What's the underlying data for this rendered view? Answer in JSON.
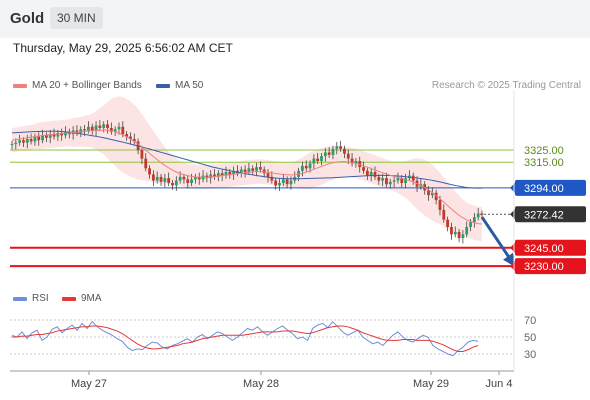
{
  "header": {
    "symbol": "Gold",
    "timeframe": "30 MIN",
    "datetime": "Thursday, May 29, 2025 6:56:02 AM CET"
  },
  "legend": {
    "ma20_label": "MA 20 + Bollinger Bands",
    "ma50_label": "MA 50",
    "copyright": "Research © 2025 Trading Central",
    "rsi_label": "RSI",
    "rsi_ma_label": "9MA"
  },
  "colors": {
    "ma20": "#f08080",
    "ma50": "#3b5ea8",
    "band_fill": "#fde3e3",
    "up": "#2a9d6a",
    "down": "#c0392b",
    "resistance": "#8cc63f",
    "pivot": "#1f58c4",
    "support": "#e5131b",
    "last": "#333333",
    "arrow": "#2c5aa0",
    "rsi": "#6f8fd8",
    "rsi_ma": "#e53935"
  },
  "chart_data": [
    {
      "type": "candlestick",
      "x_ticks": [
        "May 27",
        "May 28",
        "May 29",
        "Jun 4"
      ],
      "levels": [
        {
          "value": 3325.0,
          "label": "3325.00",
          "kind": "resistance"
        },
        {
          "value": 3315.0,
          "label": "3315.00",
          "kind": "resistance"
        },
        {
          "value": 3294.0,
          "label": "3294.00",
          "kind": "pivot"
        },
        {
          "value": 3272.42,
          "label": "3272.42",
          "kind": "last"
        },
        {
          "value": 3245.0,
          "label": "3245.00",
          "kind": "support"
        },
        {
          "value": 3230.0,
          "label": "3230.00",
          "kind": "support"
        }
      ],
      "close": [
        3330,
        3331,
        3333,
        3331,
        3334,
        3332,
        3336,
        3333,
        3337,
        3335,
        3338,
        3336,
        3339,
        3337,
        3340,
        3338,
        3341,
        3339,
        3342,
        3341,
        3344,
        3341,
        3345,
        3343,
        3346,
        3343,
        3340,
        3342,
        3344,
        3338,
        3336,
        3334,
        3332,
        3325,
        3318,
        3310,
        3305,
        3300,
        3303,
        3299,
        3302,
        3298,
        3296,
        3300,
        3303,
        3301,
        3298,
        3301,
        3303,
        3301,
        3304,
        3302,
        3305,
        3303,
        3306,
        3304,
        3307,
        3305,
        3308,
        3306,
        3309,
        3307,
        3310,
        3308,
        3311,
        3309,
        3306,
        3303,
        3300,
        3296,
        3298,
        3301,
        3297,
        3300,
        3303,
        3308,
        3312,
        3310,
        3314,
        3318,
        3316,
        3320,
        3323,
        3321,
        3326,
        3328,
        3326,
        3322,
        3318,
        3314,
        3316,
        3311,
        3308,
        3304,
        3307,
        3303,
        3300,
        3302,
        3297,
        3299,
        3300,
        3302,
        3298,
        3302,
        3304,
        3300,
        3295,
        3297,
        3292,
        3288,
        3290,
        3284,
        3276,
        3268,
        3262,
        3256,
        3258,
        3253,
        3256,
        3262,
        3266,
        3270,
        3273,
        3272
      ],
      "ma20": [
        3333,
        3333.5,
        3334,
        3334.5,
        3335,
        3335.5,
        3336,
        3336.5,
        3337,
        3337.3,
        3337.6,
        3337.9,
        3338.2,
        3338.5,
        3338.8,
        3339,
        3339.3,
        3339.6,
        3339.9,
        3340.2,
        3340.5,
        3340.8,
        3341,
        3341.2,
        3341.4,
        3341.2,
        3340.8,
        3340,
        3338.8,
        3337.4,
        3335.8,
        3334,
        3332,
        3329.8,
        3327.4,
        3324.8,
        3322.2,
        3319.6,
        3317,
        3314.6,
        3312.4,
        3310.4,
        3308.6,
        3307,
        3305.8,
        3304.8,
        3304,
        3303.4,
        3303,
        3302.8,
        3302.7,
        3302.8,
        3303,
        3303.3,
        3303.6,
        3304,
        3304.4,
        3304.8,
        3305.2,
        3305.6,
        3306,
        3306.4,
        3306.8,
        3307.1,
        3307.3,
        3307.3,
        3307.1,
        3306.8,
        3306.3,
        3305.8,
        3305.4,
        3305,
        3304.7,
        3304.6,
        3304.8,
        3305.3,
        3306,
        3306.9,
        3308,
        3309.2,
        3310.4,
        3311.6,
        3312.8,
        3313.8,
        3314.6,
        3315.2,
        3315.5,
        3315.5,
        3315.2,
        3314.7,
        3314,
        3313.1,
        3312,
        3310.9,
        3309.8,
        3308.7,
        3307.5,
        3306.4,
        3305.3,
        3304.3,
        3303.4,
        3302.6,
        3301.8,
        3301,
        3300,
        3298.8,
        3297.5,
        3296,
        3294.3,
        3292.4,
        3290.2,
        3287.8,
        3285.2,
        3282.4,
        3279.5,
        3276.7,
        3274,
        3271.6,
        3269.5,
        3267.8,
        3266.5,
        3265.5,
        3264.8,
        3264.4
      ],
      "bb_width": [
        10,
        10,
        10,
        10,
        10,
        10,
        10,
        11,
        11,
        11,
        11,
        11,
        11,
        11,
        11,
        11,
        12,
        12,
        12,
        13,
        13,
        14,
        16,
        18,
        20,
        23,
        26,
        28,
        30,
        31,
        31,
        31,
        30,
        29,
        27,
        25,
        23,
        21,
        19,
        17,
        15,
        13,
        12,
        11,
        10,
        10,
        10,
        10,
        10,
        10,
        10,
        10,
        10,
        10,
        10,
        10,
        10,
        10,
        10,
        10,
        10,
        10,
        10,
        10,
        10,
        10,
        10,
        10,
        10,
        10,
        10,
        10,
        10,
        10,
        11,
        12,
        13,
        14,
        15,
        15,
        15,
        15,
        15,
        14,
        14,
        13,
        13,
        12,
        12,
        12,
        12,
        12,
        12,
        12,
        12,
        12,
        12,
        12,
        12,
        12,
        12,
        13,
        14,
        15,
        17,
        19,
        21,
        22,
        23,
        23,
        23,
        22,
        21,
        20,
        19,
        18,
        17,
        16,
        15,
        14,
        14,
        14
      ],
      "ma50": [
        3339,
        3339.2,
        3339.4,
        3339.6,
        3339.8,
        3340,
        3340.1,
        3340.2,
        3340.3,
        3340.3,
        3340.3,
        3340.2,
        3340,
        3339.7,
        3339.3,
        3338.8,
        3338.3,
        3337.8,
        3337.2,
        3336.6,
        3336,
        3335.3,
        3334.6,
        3333.8,
        3333,
        3332.2,
        3331.4,
        3330.5,
        3329.6,
        3328.7,
        3327.8,
        3326.9,
        3326,
        3325,
        3324,
        3323,
        3322,
        3321,
        3320,
        3319,
        3318,
        3317,
        3316,
        3315,
        3314,
        3313,
        3312,
        3311,
        3310.3,
        3309.5,
        3308.8,
        3308,
        3307.3,
        3306.6,
        3306,
        3305.4,
        3304.8,
        3304.2,
        3303.7,
        3303.2,
        3302.7,
        3302.3,
        3302,
        3301.8,
        3301.6,
        3301.5,
        3301.5,
        3301.5,
        3301.6,
        3301.7,
        3301.8,
        3301.9,
        3302,
        3302.1,
        3302.2,
        3302.3,
        3302.5,
        3302.7,
        3302.9,
        3303.1,
        3303.3,
        3303.5,
        3303.7,
        3303.9,
        3304,
        3304.1,
        3304.2,
        3304.2,
        3304.1,
        3304,
        3303.8,
        3303.5,
        3303.2,
        3302.8,
        3302.4,
        3302,
        3301.5,
        3301,
        3300.4,
        3299.7,
        3299,
        3298.2,
        3297.4,
        3296.6,
        3295.8,
        3295.1,
        3294.5,
        3294.1,
        3293.9,
        3293.8,
        3293.8
      ]
    },
    {
      "type": "line",
      "series": [
        {
          "name": "RSI",
          "values": [
            52,
            50,
            56,
            48,
            55,
            58,
            46,
            50,
            59,
            62,
            55,
            60,
            64,
            58,
            66,
            60,
            68,
            62,
            58,
            55,
            52,
            48,
            45,
            38,
            34,
            36,
            35,
            40,
            44,
            43,
            38,
            36,
            40,
            42,
            45,
            48,
            44,
            50,
            53,
            48,
            52,
            56,
            54,
            50,
            46,
            50,
            55,
            60,
            58,
            62,
            56,
            52,
            56,
            60,
            63,
            58,
            54,
            48,
            50,
            46,
            60,
            64,
            66,
            61,
            68,
            62,
            56,
            52,
            55,
            58,
            50,
            46,
            42,
            44,
            40,
            46,
            52,
            56,
            50,
            46,
            44,
            48,
            52,
            50,
            40,
            36,
            33,
            30,
            28,
            34,
            38,
            44,
            46,
            45
          ]
        },
        {
          "name": "9MA",
          "values": [
            50,
            50,
            51,
            51,
            52,
            53,
            53,
            54,
            55,
            57,
            58,
            59,
            60,
            61,
            62,
            62,
            63,
            63,
            62,
            61,
            59,
            57,
            54,
            50,
            46,
            42,
            39,
            37,
            36,
            36,
            37,
            38,
            39,
            40,
            42,
            43,
            44,
            46,
            48,
            49,
            50,
            51,
            52,
            52,
            52,
            52,
            52,
            53,
            54,
            55,
            56,
            56,
            56,
            56,
            57,
            57,
            57,
            56,
            55,
            54,
            55,
            57,
            59,
            61,
            62,
            63,
            63,
            62,
            60,
            58,
            55,
            53,
            51,
            49,
            47,
            46,
            46,
            46,
            47,
            47,
            47,
            46,
            46,
            46,
            45,
            43,
            41,
            38,
            35,
            33,
            33,
            35,
            38,
            40
          ]
        }
      ],
      "y_ticks": [
        70,
        50,
        30
      ],
      "ylim": [
        22,
        80
      ]
    }
  ]
}
